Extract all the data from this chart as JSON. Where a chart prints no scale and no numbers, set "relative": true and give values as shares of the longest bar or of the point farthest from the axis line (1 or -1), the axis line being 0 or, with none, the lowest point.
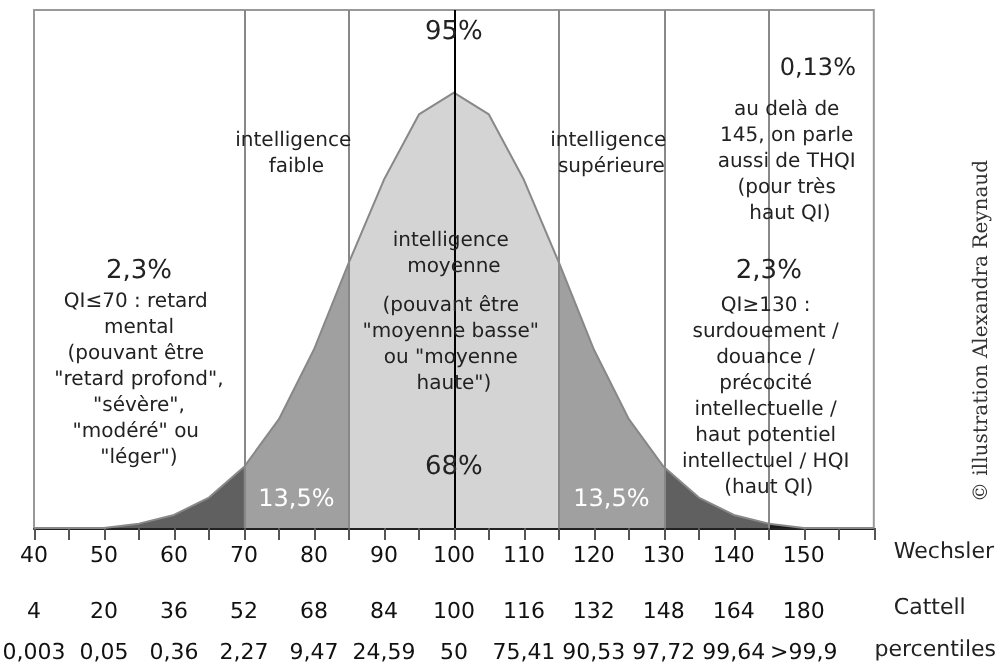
{
  "chart_data": {
    "type": "area",
    "relative": true,
    "grid": false,
    "xlabel": "Wechsler",
    "x2label": "Cattell",
    "xlim": [
      40,
      160
    ],
    "xticks": [
      40,
      {
        "value": 45,
        "label": null
      },
      50,
      {
        "value": 55,
        "label": null
      },
      60,
      {
        "value": 65,
        "label": null
      },
      70,
      {
        "value": 75,
        "label": null
      },
      80,
      {
        "value": 85,
        "label": null
      },
      90,
      {
        "value": 95,
        "label": null
      },
      100,
      {
        "value": 105,
        "label": null
      },
      110,
      {
        "value": 115,
        "label": null
      },
      120,
      {
        "value": 125,
        "label": null
      },
      130,
      {
        "value": 135,
        "label": null
      },
      140,
      {
        "value": 145,
        "label": null
      },
      150,
      {
        "value": 155,
        "label": null
      },
      {
        "value": 160,
        "label": null
      }
    ],
    "x2lim": [
      4,
      196
    ],
    "x2ticks": [
      4,
      20,
      36,
      52,
      68,
      84,
      100,
      116,
      132,
      148,
      164,
      180
    ],
    "series": [
      {
        "color": "#606060",
        "x": [
          40,
          45,
          50,
          55,
          60,
          65,
          70
        ],
        "values": [
          0,
          0,
          0,
          0.01,
          0.03,
          0.07,
          0.14
        ]
      },
      {
        "color": "#a0a0a0",
        "x": [
          70,
          75,
          80,
          85
        ],
        "values": [
          0.14,
          0.25,
          0.41,
          0.61
        ]
      },
      {
        "color": "#d4d4d4",
        "x": [
          85,
          90,
          95,
          100,
          105,
          110,
          115
        ],
        "values": [
          0.61,
          0.8,
          0.95,
          1,
          0.95,
          0.8,
          0.61
        ]
      },
      {
        "color": "#a0a0a0",
        "x": [
          115,
          120,
          125,
          130
        ],
        "values": [
          0.61,
          0.41,
          0.25,
          0.14
        ]
      },
      {
        "color": "#606060",
        "x": [
          130,
          135,
          140,
          145
        ],
        "values": [
          0.14,
          0.07,
          0.03,
          0.01
        ]
      },
      {
        "color": "#1a1a1a",
        "x": [
          145,
          150,
          155,
          160
        ],
        "values": [
          0.01,
          0,
          0,
          0
        ]
      }
    ],
    "ref_lines": [
      {
        "axis": "x",
        "value": 70,
        "color": "#888888"
      },
      {
        "axis": "x",
        "value": 85,
        "color": "#888888"
      },
      {
        "axis": "x",
        "value": 100,
        "color": "#000000"
      },
      {
        "axis": "x",
        "value": 115,
        "color": "#888888"
      },
      {
        "axis": "x",
        "value": 130,
        "color": "#888888"
      },
      {
        "axis": "x",
        "value": 145,
        "color": "#888888"
      }
    ],
    "annotations": [
      "95%",
      "intelligence faible",
      "intelligence supérieure",
      "intelligence moyenne",
      "(pouvant être \"moyenne basse\" ou \"moyenne haute\")",
      "68%",
      "13,5%",
      "13,5%",
      "2,3%",
      "QI≤70 : retard mental",
      "(pouvant être \"retard profond\", \"sévère\", \"modéré\" ou \"léger\")",
      "2,3%",
      "QI≥130 : surdouement / douance / précocité intellectuelle / haut potentiel intellectuel / HQI (haut QI)",
      "0,13%",
      "au delà de 145, on parle aussi de THQI (pour très haut QI)",
      "© illustration Alexandra Reynaud",
      "percentiles",
      "0,003",
      "0,05",
      "0,36",
      "2,27",
      "9,47",
      "24,59",
      "50",
      "75,41",
      "90,53",
      "97,72",
      "99,64",
      ">99,9"
    ]
  }
}
